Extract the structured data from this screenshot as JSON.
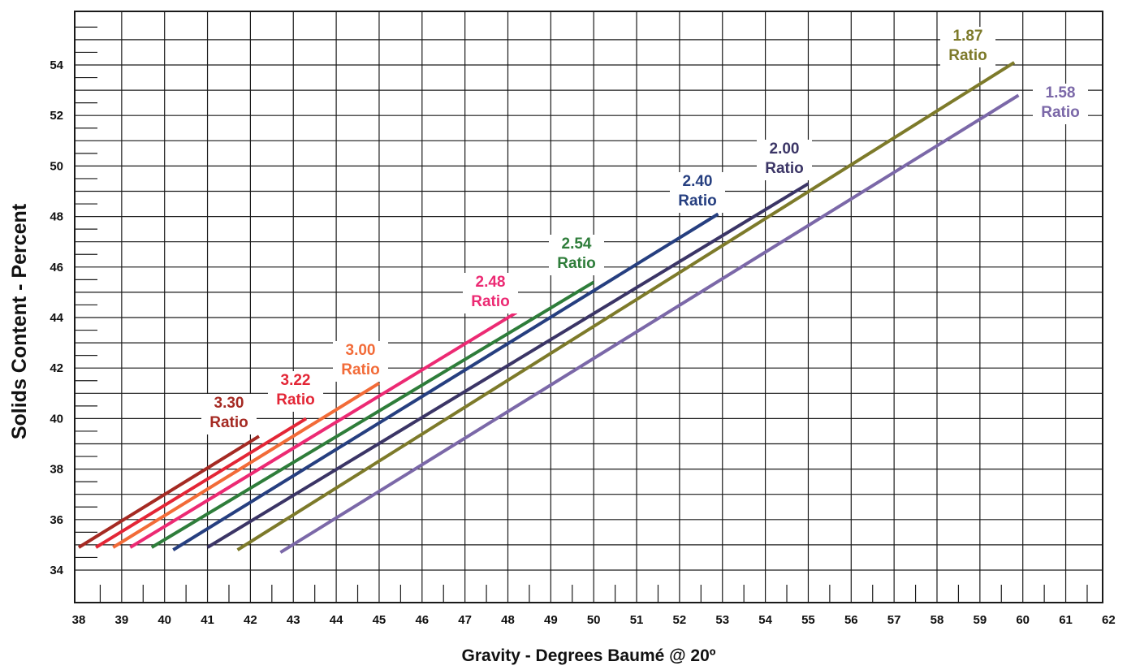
{
  "chart_data": {
    "type": "line",
    "title": "",
    "xlabel": "Gravity - Degrees Baumé @ 20º",
    "ylabel": "Solids Content - Percent",
    "xlim": [
      38,
      62
    ],
    "ylim": [
      33,
      56
    ],
    "grid": true,
    "x_ticks": [
      38,
      39,
      40,
      41,
      42,
      43,
      44,
      45,
      46,
      47,
      48,
      49,
      50,
      51,
      52,
      53,
      54,
      55,
      56,
      57,
      58,
      59,
      60,
      61,
      62
    ],
    "y_ticks": [
      34,
      36,
      38,
      40,
      42,
      44,
      46,
      48,
      50,
      52,
      54
    ],
    "series": [
      {
        "label_line1": "3.30",
        "label_line2": "Ratio",
        "color": "#a52a23",
        "x": [
          38.0,
          42.2
        ],
        "y": [
          34.9,
          39.3
        ]
      },
      {
        "label_line1": "3.22",
        "label_line2": "Ratio",
        "color": "#e32636",
        "x": [
          38.4,
          43.3
        ],
        "y": [
          34.9,
          40.0
        ]
      },
      {
        "label_line1": "3.00",
        "label_line2": "Ratio",
        "color": "#f26b38",
        "x": [
          38.8,
          45.0
        ],
        "y": [
          34.9,
          41.4
        ]
      },
      {
        "label_line1": "2.48",
        "label_line2": "Ratio",
        "color": "#ec2a73",
        "x": [
          39.2,
          48.2
        ],
        "y": [
          34.9,
          44.2
        ]
      },
      {
        "label_line1": "2.54",
        "label_line2": "Ratio",
        "color": "#2e7d3a",
        "x": [
          39.7,
          50.0
        ],
        "y": [
          34.9,
          45.4
        ]
      },
      {
        "label_line1": "2.40",
        "label_line2": "Ratio",
        "color": "#263f80",
        "x": [
          40.2,
          52.9
        ],
        "y": [
          34.8,
          48.1
        ]
      },
      {
        "label_line1": "2.00",
        "label_line2": "Ratio",
        "color": "#3b3566",
        "x": [
          41.0,
          55.0
        ],
        "y": [
          34.9,
          49.3
        ]
      },
      {
        "label_line1": "1.87",
        "label_line2": "Ratio",
        "color": "#7d7a2a",
        "x": [
          41.7,
          59.8
        ],
        "y": [
          34.8,
          54.1
        ]
      },
      {
        "label_line1": "1.58",
        "label_line2": "Ratio",
        "color": "#7b68a8",
        "x": [
          42.7,
          59.9
        ],
        "y": [
          34.7,
          52.8
        ]
      }
    ]
  }
}
